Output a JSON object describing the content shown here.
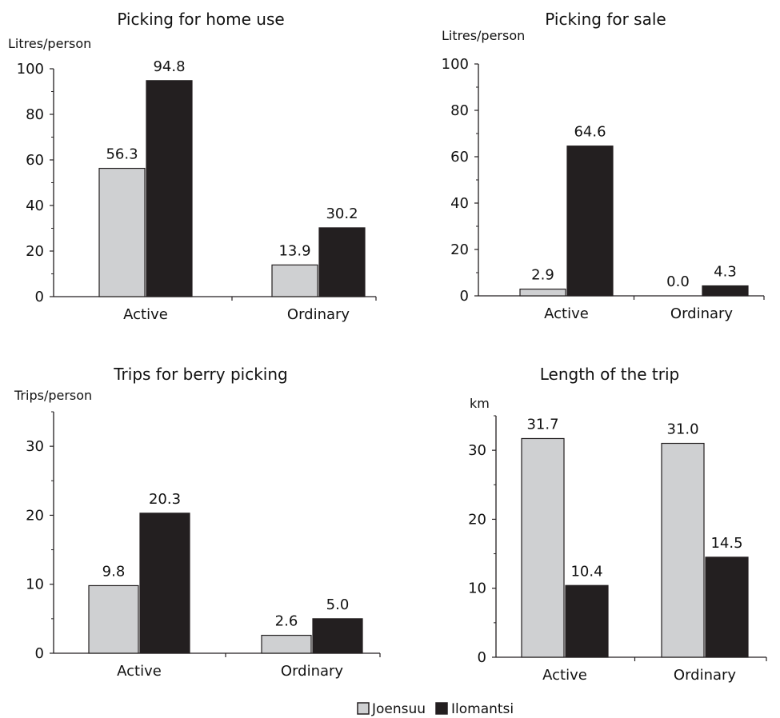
{
  "legend": {
    "items": [
      {
        "label": "Joensuu",
        "color": "#cfd0d2"
      },
      {
        "label": "Ilomantsi",
        "color": "#231f20"
      }
    ]
  },
  "chart_data": [
    {
      "type": "bar",
      "title": "Picking for home use",
      "ylabel": "Litres/person",
      "categories": [
        "Active",
        "Ordinary"
      ],
      "series": [
        {
          "name": "Joensuu",
          "values": [
            56.3,
            13.9
          ]
        },
        {
          "name": "Ilomantsi",
          "values": [
            94.8,
            30.2
          ]
        }
      ],
      "ylim": [
        0,
        100
      ],
      "yticks": [
        0,
        20,
        40,
        60,
        80,
        100
      ],
      "ytick_labels": [
        "0",
        "20",
        "40",
        "60",
        "80",
        "100"
      ],
      "data_labels": [
        [
          "56.3",
          "13.9"
        ],
        [
          "94.8",
          "30.2"
        ]
      ]
    },
    {
      "type": "bar",
      "title": "Picking for sale",
      "ylabel": "Litres/person",
      "categories": [
        "Active",
        "Ordinary"
      ],
      "series": [
        {
          "name": "Joensuu",
          "values": [
            2.9,
            0.0
          ]
        },
        {
          "name": "Ilomantsi",
          "values": [
            64.6,
            4.3
          ]
        }
      ],
      "ylim": [
        0,
        100
      ],
      "yticks": [
        0,
        20,
        40,
        60,
        80,
        100
      ],
      "ytick_labels": [
        "0",
        "20",
        "40",
        "60",
        "80",
        "100"
      ],
      "data_labels": [
        [
          "2.9",
          "0.0"
        ],
        [
          "64.6",
          "4.3"
        ]
      ]
    },
    {
      "type": "bar",
      "title": "Trips for berry picking",
      "ylabel": "Trips/person",
      "categories": [
        "Active",
        "Ordinary"
      ],
      "series": [
        {
          "name": "Joensuu",
          "values": [
            9.8,
            2.6
          ]
        },
        {
          "name": "Ilomantsi",
          "values": [
            20.3,
            5.0
          ]
        }
      ],
      "ylim": [
        0,
        35
      ],
      "yticks": [
        0,
        10,
        20,
        30
      ],
      "ytick_labels": [
        "0",
        "10",
        "20",
        "30"
      ],
      "data_labels": [
        [
          "9.8",
          "2.6"
        ],
        [
          "20.3",
          "5.0"
        ]
      ]
    },
    {
      "type": "bar",
      "title": "Length of the trip",
      "ylabel": "km",
      "categories": [
        "Active",
        "Ordinary"
      ],
      "series": [
        {
          "name": "Joensuu",
          "values": [
            31.7,
            31.0
          ]
        },
        {
          "name": "Ilomantsi",
          "values": [
            10.4,
            14.5
          ]
        }
      ],
      "ylim": [
        0,
        35
      ],
      "yticks": [
        0,
        10,
        20,
        30
      ],
      "ytick_labels": [
        "0",
        "10",
        "20",
        "30"
      ],
      "data_labels": [
        [
          "31.7",
          "31.0"
        ],
        [
          "10.4",
          "14.5"
        ]
      ]
    }
  ]
}
